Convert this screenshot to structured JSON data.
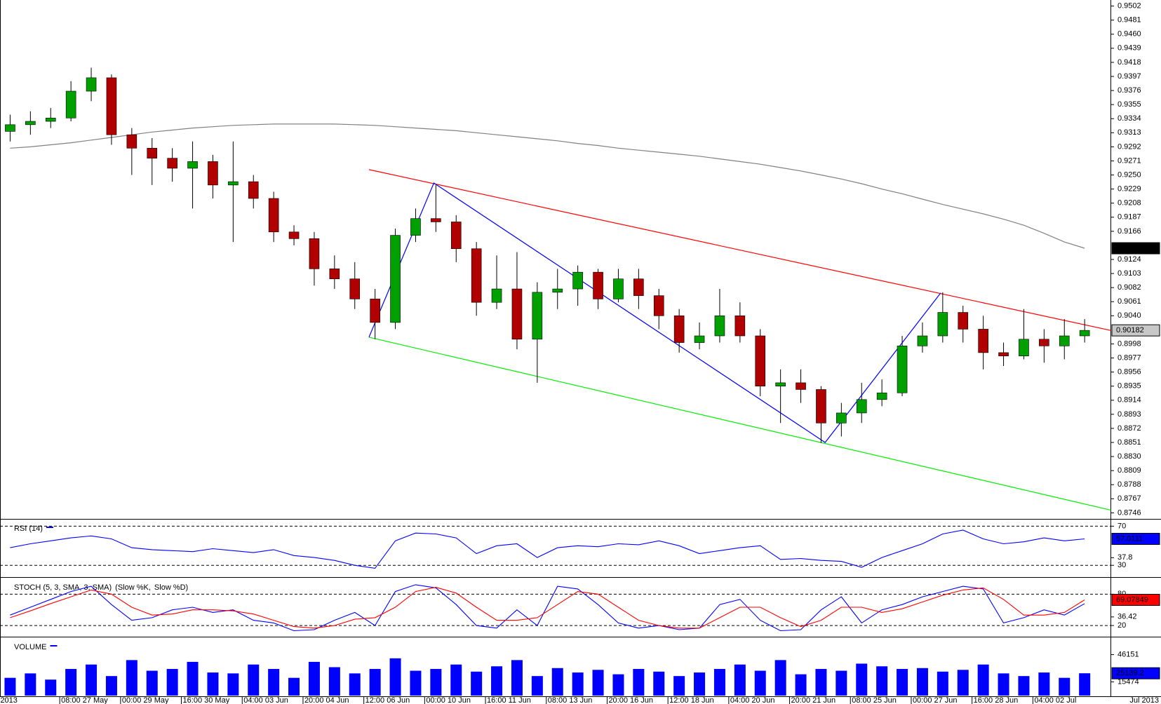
{
  "chart_data": [
    {
      "type": "candlestick",
      "categories": [
        "2013",
        null,
        null,
        "08:00 27 May",
        null,
        null,
        "00:00 29 May",
        null,
        null,
        "16:00 30 May",
        null,
        null,
        "04:00 03 Jun",
        null,
        null,
        "20:00 04 Jun",
        null,
        null,
        "12:00 06 Jun",
        null,
        null,
        "00:00 10 Jun",
        null,
        null,
        "16:00 11 Jun",
        null,
        null,
        "08:00 13 Jun",
        null,
        null,
        "20:00 16 Jun",
        null,
        null,
        "12:00 18 Jun",
        null,
        null,
        "04:00 20 Jun",
        null,
        null,
        "20:00 21 Jun",
        null,
        null,
        "08:00 25 Jun",
        null,
        null,
        "00:00 27 Jun",
        null,
        null,
        "16:00 28 Jun",
        null,
        null,
        "04:00 02 Jul",
        null,
        null
      ],
      "x_end_label": "Jul 2013",
      "open": [
        0.9315,
        0.9325,
        0.933,
        0.9335,
        0.9375,
        0.9395,
        0.931,
        0.929,
        0.9275,
        0.926,
        0.927,
        0.9235,
        0.924,
        0.9215,
        0.9165,
        0.9155,
        0.911,
        0.9095,
        0.9065,
        0.903,
        0.916,
        0.9185,
        0.918,
        0.914,
        0.906,
        0.908,
        0.9005,
        0.9075,
        0.908,
        0.9105,
        0.9065,
        0.9095,
        0.907,
        0.904,
        0.9,
        0.901,
        0.904,
        0.901,
        0.8935,
        0.894,
        0.893,
        0.888,
        0.8895,
        0.8915,
        0.8925,
        0.8995,
        0.901,
        0.9045,
        0.902,
        0.8985,
        0.898,
        0.9005,
        0.8995,
        0.901
      ],
      "high": [
        0.934,
        0.9345,
        0.935,
        0.939,
        0.941,
        0.94,
        0.932,
        0.9305,
        0.929,
        0.93,
        0.928,
        0.93,
        0.925,
        0.9225,
        0.9175,
        0.9165,
        0.913,
        0.912,
        0.908,
        0.917,
        0.92,
        0.9235,
        0.919,
        0.915,
        0.913,
        0.9135,
        0.909,
        0.911,
        0.9115,
        0.911,
        0.911,
        0.911,
        0.908,
        0.905,
        0.903,
        0.908,
        0.906,
        0.902,
        0.896,
        0.896,
        0.8935,
        0.891,
        0.894,
        0.8945,
        0.901,
        0.903,
        0.9075,
        0.9055,
        0.904,
        0.9,
        0.905,
        0.902,
        0.9035,
        0.9035
      ],
      "low": [
        0.93,
        0.931,
        0.932,
        0.933,
        0.936,
        0.9295,
        0.925,
        0.9235,
        0.924,
        0.92,
        0.9215,
        0.915,
        0.92,
        0.915,
        0.9145,
        0.9085,
        0.908,
        0.905,
        0.9005,
        0.902,
        0.915,
        0.9165,
        0.912,
        0.904,
        0.905,
        0.899,
        0.894,
        0.905,
        0.9055,
        0.905,
        0.906,
        0.905,
        0.902,
        0.8985,
        0.899,
        0.9,
        0.9,
        0.892,
        0.888,
        0.891,
        0.885,
        0.886,
        0.888,
        0.8905,
        0.892,
        0.8985,
        0.9,
        0.9,
        0.896,
        0.8965,
        0.8975,
        0.897,
        0.8975,
        0.9
      ],
      "close": [
        0.9325,
        0.933,
        0.9335,
        0.9375,
        0.9395,
        0.931,
        0.929,
        0.9275,
        0.926,
        0.927,
        0.9235,
        0.924,
        0.9215,
        0.9165,
        0.9155,
        0.911,
        0.9095,
        0.9065,
        0.903,
        0.916,
        0.9185,
        0.918,
        0.914,
        0.906,
        0.908,
        0.9005,
        0.9075,
        0.908,
        0.9105,
        0.9065,
        0.9095,
        0.907,
        0.904,
        0.9,
        0.901,
        0.904,
        0.901,
        0.8935,
        0.894,
        0.893,
        0.888,
        0.8895,
        0.8915,
        0.8925,
        0.8995,
        0.901,
        0.9045,
        0.902,
        0.8985,
        0.898,
        0.9005,
        0.8995,
        0.901,
        0.90182
      ],
      "up_color": "#00a000",
      "down_color": "#b00000",
      "ma": {
        "color": "#808080",
        "values": [
          0.929,
          0.9292,
          0.9295,
          0.9298,
          0.9302,
          0.9306,
          0.931,
          0.9314,
          0.9317,
          0.932,
          0.9322,
          0.9324,
          0.9325,
          0.9326,
          0.9326,
          0.9326,
          0.9326,
          0.9325,
          0.9324,
          0.9322,
          0.932,
          0.9318,
          0.9316,
          0.9313,
          0.931,
          0.9307,
          0.9304,
          0.9301,
          0.9297,
          0.9294,
          0.929,
          0.9287,
          0.9284,
          0.9281,
          0.9278,
          0.9274,
          0.927,
          0.9266,
          0.9261,
          0.9256,
          0.925,
          0.9244,
          0.9237,
          0.9229,
          0.9222,
          0.9214,
          0.9206,
          0.9199,
          0.9192,
          0.9184,
          0.9175,
          0.9163,
          0.915,
          0.91407
        ]
      },
      "trend_lines": [
        {
          "color": "#ff0000",
          "x": [
            17.7,
            54.3
          ],
          "y": [
            0.9258,
            0.9018
          ]
        },
        {
          "color": "#00ee00",
          "x": [
            17.7,
            54.3
          ],
          "y": [
            0.9008,
            0.875
          ]
        },
        {
          "color": "#0000ff",
          "x": [
            17.7,
            20.9,
            40.2,
            45.9
          ],
          "y": [
            0.9008,
            0.9238,
            0.8851,
            0.9074
          ]
        }
      ],
      "ylim": [
        0.8737,
        0.9511
      ],
      "yticks": [
        0.9502,
        0.9481,
        {
          "value": 0.946,
          "label": "0.9460"
        },
        0.9439,
        0.9418,
        0.9397,
        0.9376,
        0.9355,
        0.9334,
        0.9313,
        0.9292,
        0.9271,
        {
          "value": 0.925,
          "label": "0.9250"
        },
        0.9229,
        0.9208,
        0.9187,
        0.9166,
        0.9124,
        0.9103,
        0.9082,
        0.9061,
        {
          "value": 0.904,
          "label": "0.9040"
        },
        0.8998,
        0.8977,
        0.8956,
        0.8935,
        0.8914,
        0.8893,
        0.8872,
        0.8851,
        {
          "value": 0.883,
          "label": "0.8830"
        },
        0.8809,
        0.8788,
        0.8767,
        0.8746
      ]
    },
    {
      "type": "line",
      "title": "RSI (14)",
      "series": [
        {
          "name": "RSI (14)",
          "color": "#0000ff",
          "values": [
            48,
            52,
            55,
            58,
            60,
            57,
            48,
            46,
            45,
            44,
            47,
            45,
            43,
            46,
            40,
            38,
            35,
            30,
            27,
            55,
            63,
            62,
            58,
            42,
            50,
            52,
            38,
            48,
            50,
            49,
            52,
            51,
            55,
            50,
            42,
            45,
            48,
            50,
            36,
            37,
            35,
            34,
            28,
            38,
            45,
            52,
            62,
            66,
            57,
            52,
            54,
            58,
            55,
            57.0111
          ]
        }
      ],
      "levels": [
        70,
        30
      ],
      "ylim": [
        18.7,
        76
      ],
      "yticks": [
        30,
        37.8,
        70
      ]
    },
    {
      "type": "line",
      "title": "STOCH (5, 3, SMA, 3, SMA)",
      "series": [
        {
          "name": "(Slow %K,",
          "color": "#0000ff",
          "values": [
            40,
            55,
            70,
            85,
            95,
            60,
            30,
            35,
            50,
            55,
            45,
            50,
            30,
            25,
            10,
            12,
            30,
            45,
            20,
            85,
            98,
            92,
            60,
            20,
            15,
            50,
            20,
            95,
            90,
            60,
            25,
            15,
            20,
            12,
            15,
            60,
            70,
            30,
            10,
            12,
            50,
            75,
            25,
            50,
            60,
            75,
            85,
            95,
            90,
            25,
            35,
            50,
            40,
            62
          ]
        },
        {
          "name": "Slow %D)",
          "color": "#ff0000",
          "values": [
            35,
            48,
            62,
            75,
            88,
            80,
            55,
            40,
            42,
            50,
            50,
            48,
            42,
            30,
            18,
            15,
            20,
            32,
            35,
            55,
            85,
            93,
            82,
            55,
            30,
            30,
            35,
            60,
            85,
            80,
            55,
            30,
            20,
            15,
            15,
            35,
            55,
            55,
            35,
            18,
            30,
            55,
            55,
            45,
            52,
            65,
            78,
            88,
            92,
            70,
            40,
            40,
            45,
            69.07849
          ]
        }
      ],
      "levels": [
        80,
        20
      ],
      "ylim": [
        0,
        108.6
      ],
      "yticks": [
        20,
        36.42,
        80
      ]
    },
    {
      "type": "bar",
      "title": "VOLUME",
      "color": "#0000ff",
      "values": [
        20000,
        25000,
        18000,
        30000,
        35000,
        22000,
        40000,
        28000,
        30000,
        38000,
        26000,
        25000,
        35000,
        30000,
        20000,
        38000,
        32000,
        25000,
        30000,
        42000,
        28000,
        30000,
        35000,
        27000,
        33000,
        40000,
        22000,
        31000,
        26000,
        29000,
        24000,
        30000,
        27000,
        22000,
        26000,
        30000,
        35000,
        28000,
        40000,
        24000,
        30000,
        28000,
        36000,
        33000,
        30000,
        31000,
        27000,
        29000,
        35000,
        25000,
        22000,
        26000,
        20000,
        25139.2
      ],
      "ylim": [
        0,
        64000
      ],
      "yticks": [
        15474,
        46151
      ]
    }
  ]
}
